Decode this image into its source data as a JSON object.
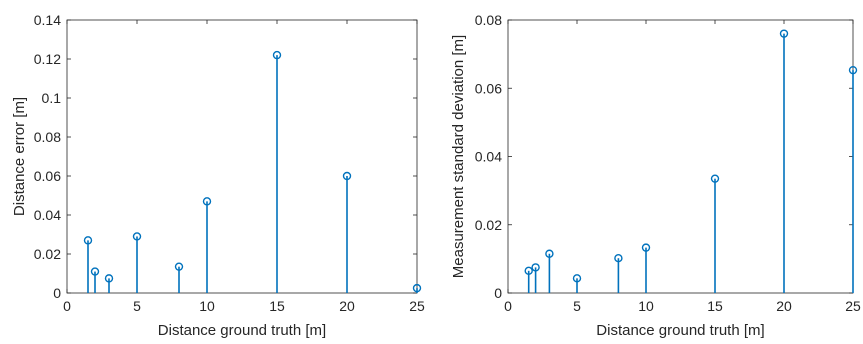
{
  "chart_data": [
    {
      "type": "stem",
      "xlabel": "Distance ground truth [m]",
      "ylabel": "Distance error [m]",
      "xlim": [
        0,
        25
      ],
      "ylim": [
        0,
        0.14
      ],
      "xticks": [
        "0",
        "5",
        "10",
        "15",
        "20",
        "25"
      ],
      "yticks": [
        "0",
        "0.02",
        "0.04",
        "0.06",
        "0.08",
        "0.1",
        "0.12",
        "0.14"
      ],
      "grid": false,
      "color": "#0072BD",
      "x": [
        1.5,
        2,
        3,
        5,
        8,
        10,
        15,
        20,
        25
      ],
      "y": [
        0.027,
        0.011,
        0.0075,
        0.029,
        0.0135,
        0.047,
        0.122,
        0.06,
        0.0025
      ]
    },
    {
      "type": "stem",
      "xlabel": "Distance ground truth [m]",
      "ylabel": "Measurement standard deviation [m]",
      "xlim": [
        0,
        25
      ],
      "ylim": [
        0,
        0.08
      ],
      "xticks": [
        "0",
        "5",
        "10",
        "15",
        "20",
        "25"
      ],
      "yticks": [
        "0",
        "0.02",
        "0.04",
        "0.06",
        "0.08"
      ],
      "grid": false,
      "color": "#0072BD",
      "x": [
        1.5,
        2,
        3,
        5,
        8,
        10,
        15,
        20,
        25
      ],
      "y": [
        0.0065,
        0.0075,
        0.0115,
        0.0043,
        0.0102,
        0.0133,
        0.0335,
        0.076,
        0.0653
      ]
    }
  ]
}
